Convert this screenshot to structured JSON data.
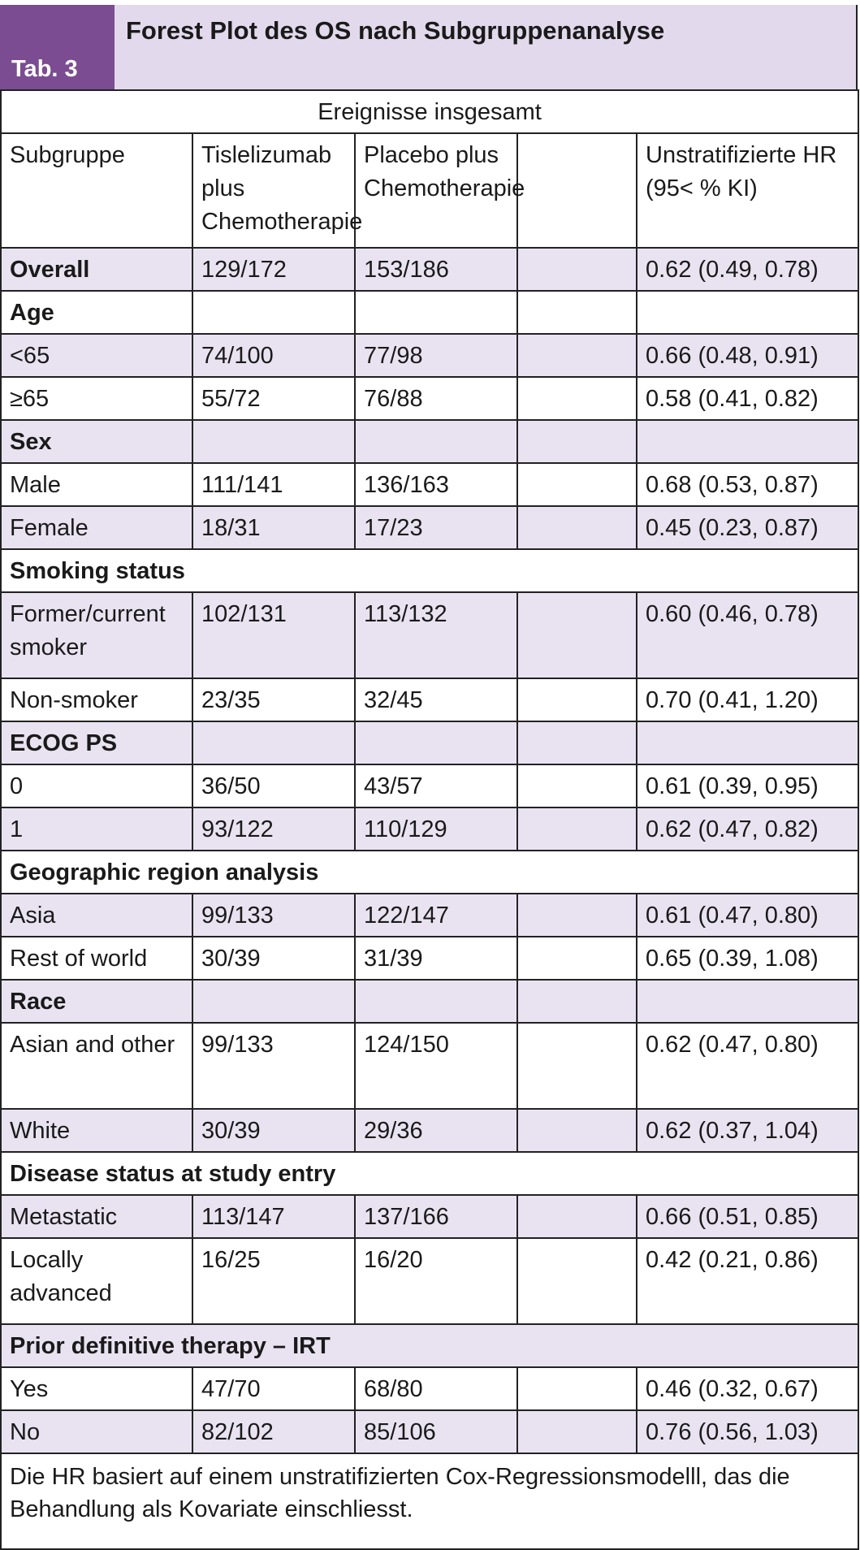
{
  "header": {
    "tab_label": "Tab. 3",
    "title": "Forest Plot des OS nach Subgruppenanalyse"
  },
  "events_label": "Ereignisse insgesamt",
  "columns": [
    "Subgruppe",
    "Tislelizumab plus Chemotherapie",
    "Placebo plus Chemotherapie",
    "",
    "Unstratifizierte HR (95< % KI)"
  ],
  "rows": [
    {
      "label": "Overall",
      "bold": true,
      "t": "129/172",
      "p": "153/186",
      "hr": "0.62 (0.49, 0.78)"
    },
    {
      "label": "Age",
      "bold": true,
      "t": "",
      "p": "",
      "hr": ""
    },
    {
      "label": "<65",
      "bold": false,
      "t": "74/100",
      "p": "77/98",
      "hr": "0.66 (0.48, 0.91)"
    },
    {
      "label": "≥65",
      "bold": false,
      "t": "55/72",
      "p": "76/88",
      "hr": "0.58 (0.41, 0.82)"
    },
    {
      "label": "Sex",
      "bold": true,
      "t": "",
      "p": "",
      "hr": ""
    },
    {
      "label": "Male",
      "bold": false,
      "t": "111/141",
      "p": "136/163",
      "hr": "0.68 (0.53, 0.87)"
    },
    {
      "label": "Female",
      "bold": false,
      "t": "18/31",
      "p": "17/23",
      "hr": "0.45 (0.23, 0.87)"
    },
    {
      "label": "Smoking status",
      "bold": true,
      "span": true
    },
    {
      "label": "Former/current smoker",
      "bold": false,
      "t": "102/131",
      "p": "113/132",
      "hr": "0.60 (0.46, 0.78)",
      "tall": true
    },
    {
      "label": "Non-smoker",
      "bold": false,
      "t": "23/35",
      "p": "32/45",
      "hr": "0.70 (0.41, 1.20)"
    },
    {
      "label": "ECOG PS",
      "bold": true,
      "t": "",
      "p": "",
      "hr": ""
    },
    {
      "label": "0",
      "bold": false,
      "t": "36/50",
      "p": "43/57",
      "hr": "0.61 (0.39, 0.95)"
    },
    {
      "label": "1",
      "bold": false,
      "t": "93/122",
      "p": "110/129",
      "hr": "0.62 (0.47, 0.82)"
    },
    {
      "label": "Geographic region analysis",
      "bold": true,
      "span": true
    },
    {
      "label": "Asia",
      "bold": false,
      "t": "99/133",
      "p": "122/147",
      "hr": "0.61 (0.47, 0.80)"
    },
    {
      "label": "Rest of world",
      "bold": false,
      "t": "30/39",
      "p": "31/39",
      "hr": "0.65 (0.39, 1.08)"
    },
    {
      "label": "Race",
      "bold": true,
      "t": "",
      "p": "",
      "hr": ""
    },
    {
      "label": "Asian and other",
      "bold": false,
      "t": "99/133",
      "p": "124/150",
      "hr": "0.62 (0.47, 0.80)",
      "tall": true
    },
    {
      "label": "White",
      "bold": false,
      "t": "30/39",
      "p": "29/36",
      "hr": "0.62 (0.37, 1.04)"
    },
    {
      "label": "Disease status at study entry",
      "bold": true,
      "span": true
    },
    {
      "label": "Metastatic",
      "bold": false,
      "t": "113/147",
      "p": "137/166",
      "hr": "0.66 (0.51, 0.85)"
    },
    {
      "label": "Locally advanced",
      "bold": false,
      "t": "16/25",
      "p": "16/20",
      "hr": "0.42 (0.21, 0.86)",
      "tall": true
    },
    {
      "label": "Prior definitive therapy – IRT",
      "bold": true,
      "span": true
    },
    {
      "label": "Yes",
      "bold": false,
      "t": "47/70",
      "p": "68/80",
      "hr": "0.46 (0.32, 0.67)"
    },
    {
      "label": "No",
      "bold": false,
      "t": "82/102",
      "p": "85/106",
      "hr": "0.76 (0.56, 1.03)"
    }
  ],
  "footnote": "Die HR basiert auf einem unstratifizierten Cox-Regressionsmodelll, das die Behandlung als Kovariate einschliesst."
}
